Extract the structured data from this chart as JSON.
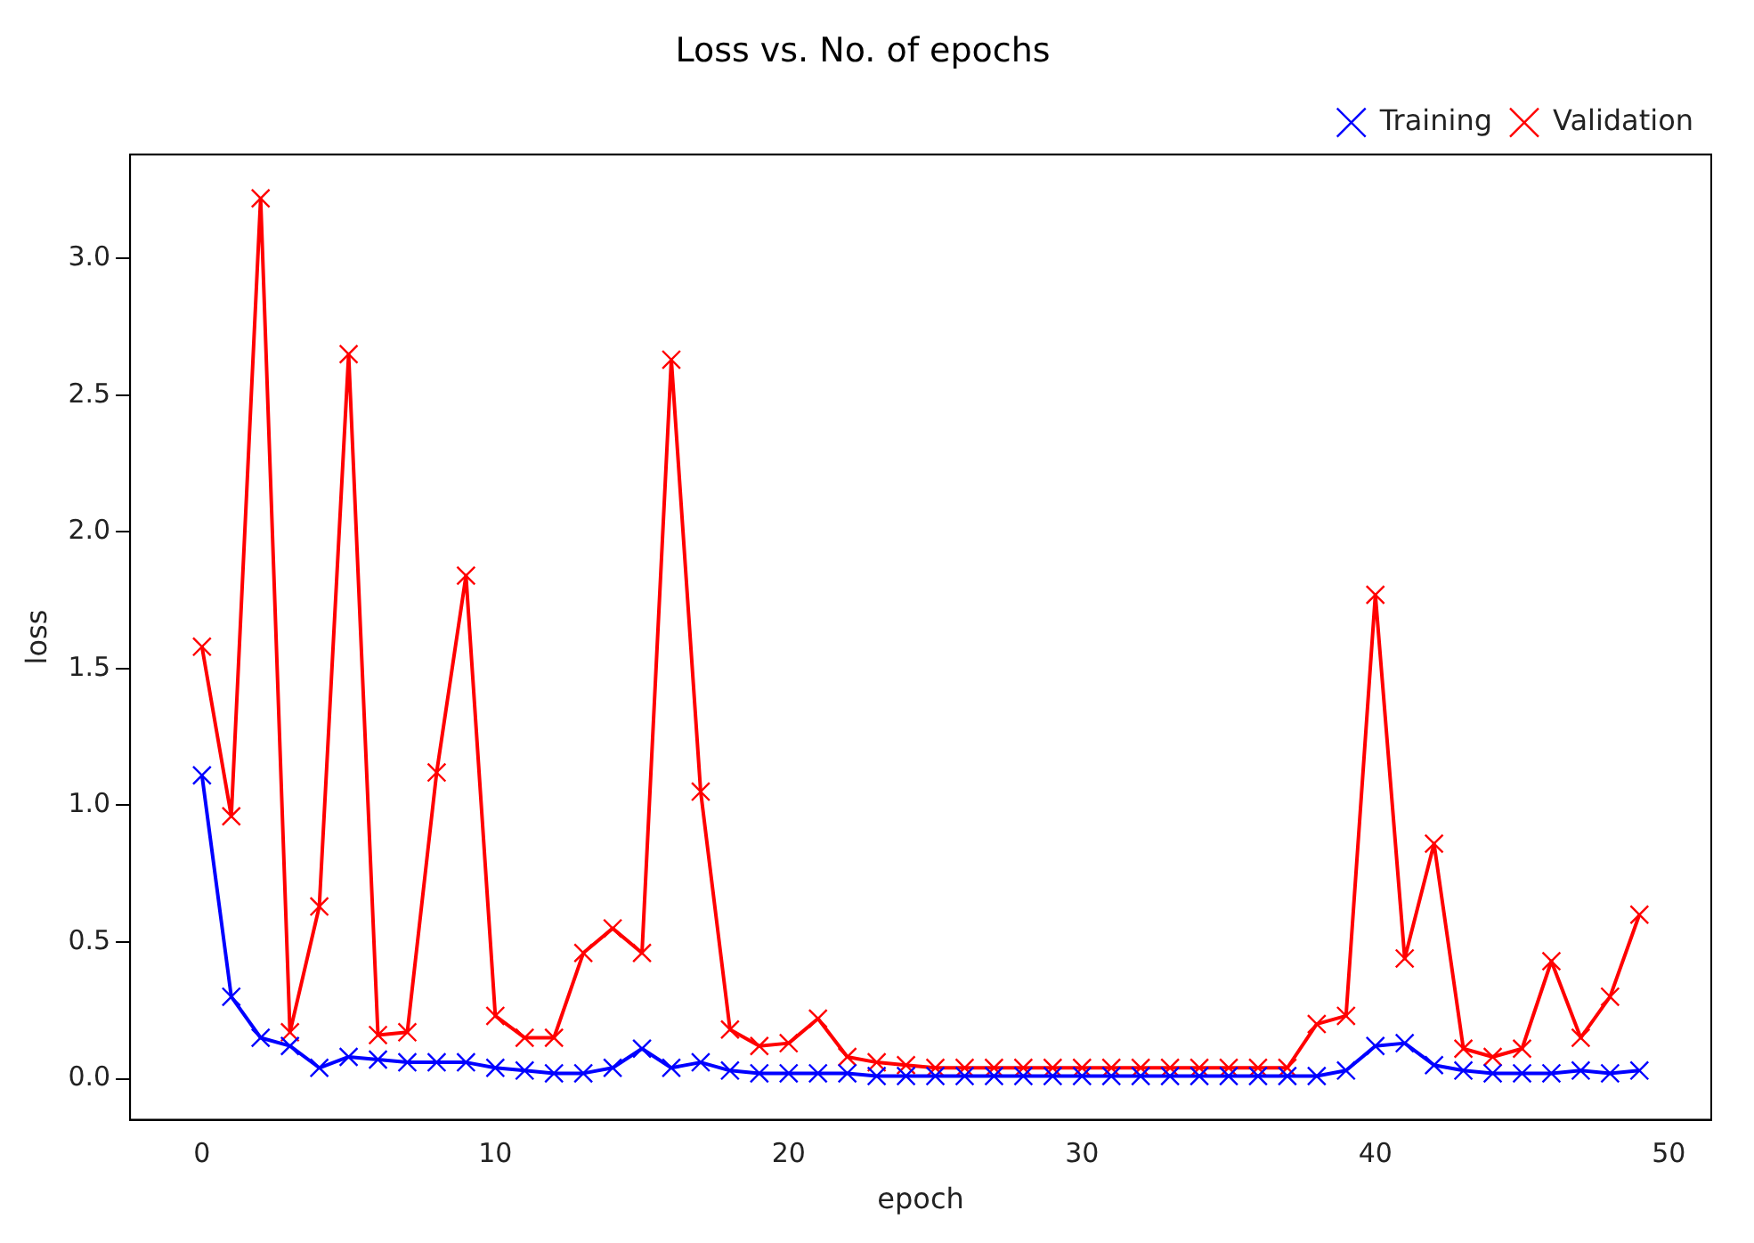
{
  "chart_data": {
    "type": "line",
    "title": "Loss vs. No. of epochs",
    "xlabel": "epoch",
    "ylabel": "loss",
    "x": [
      0,
      1,
      2,
      3,
      4,
      5,
      6,
      7,
      8,
      9,
      10,
      11,
      12,
      13,
      14,
      15,
      16,
      17,
      18,
      19,
      20,
      21,
      22,
      23,
      24,
      25,
      26,
      27,
      28,
      29,
      30,
      31,
      32,
      33,
      34,
      35,
      36,
      37,
      38,
      39,
      40,
      41,
      42,
      43,
      44,
      45,
      46,
      47,
      48,
      49
    ],
    "series": [
      {
        "name": "Training",
        "color": "#0000ff",
        "values": [
          1.11,
          0.3,
          0.15,
          0.12,
          0.04,
          0.08,
          0.07,
          0.06,
          0.06,
          0.06,
          0.04,
          0.03,
          0.02,
          0.02,
          0.04,
          0.11,
          0.04,
          0.06,
          0.03,
          0.02,
          0.02,
          0.02,
          0.02,
          0.01,
          0.01,
          0.01,
          0.01,
          0.01,
          0.01,
          0.01,
          0.01,
          0.01,
          0.01,
          0.01,
          0.01,
          0.01,
          0.01,
          0.01,
          0.01,
          0.03,
          0.12,
          0.13,
          0.05,
          0.03,
          0.02,
          0.02,
          0.02,
          0.03,
          0.02,
          0.03
        ]
      },
      {
        "name": "Validation",
        "color": "#ff0000",
        "values": [
          1.58,
          0.96,
          3.22,
          0.17,
          0.63,
          2.65,
          0.16,
          0.17,
          1.12,
          1.84,
          0.23,
          0.15,
          0.15,
          0.46,
          0.55,
          0.46,
          2.63,
          1.05,
          0.18,
          0.12,
          0.13,
          0.22,
          0.08,
          0.06,
          0.05,
          0.04,
          0.04,
          0.04,
          0.04,
          0.04,
          0.04,
          0.04,
          0.04,
          0.04,
          0.04,
          0.04,
          0.04,
          0.04,
          0.2,
          0.23,
          1.77,
          0.44,
          0.86,
          0.11,
          0.08,
          0.11,
          0.43,
          0.15,
          0.3,
          0.6
        ]
      }
    ],
    "xlim": [
      -2.45,
      51.45
    ],
    "ylim": [
      -0.15,
      3.38
    ],
    "xticks": [
      0,
      10,
      20,
      30,
      40,
      50
    ],
    "yticks": [
      {
        "value": 0,
        "label": "0.0"
      },
      {
        "value": 0.5,
        "label": "0.5"
      },
      {
        "value": 1,
        "label": "1.0"
      },
      {
        "value": 1.5,
        "label": "1.5"
      },
      {
        "value": 2,
        "label": "2.0"
      },
      {
        "value": 2.5,
        "label": "2.5"
      },
      {
        "value": 3,
        "label": "3.0"
      }
    ],
    "grid": false,
    "legend": "top right",
    "marker": "cross",
    "line_style": "solid"
  }
}
